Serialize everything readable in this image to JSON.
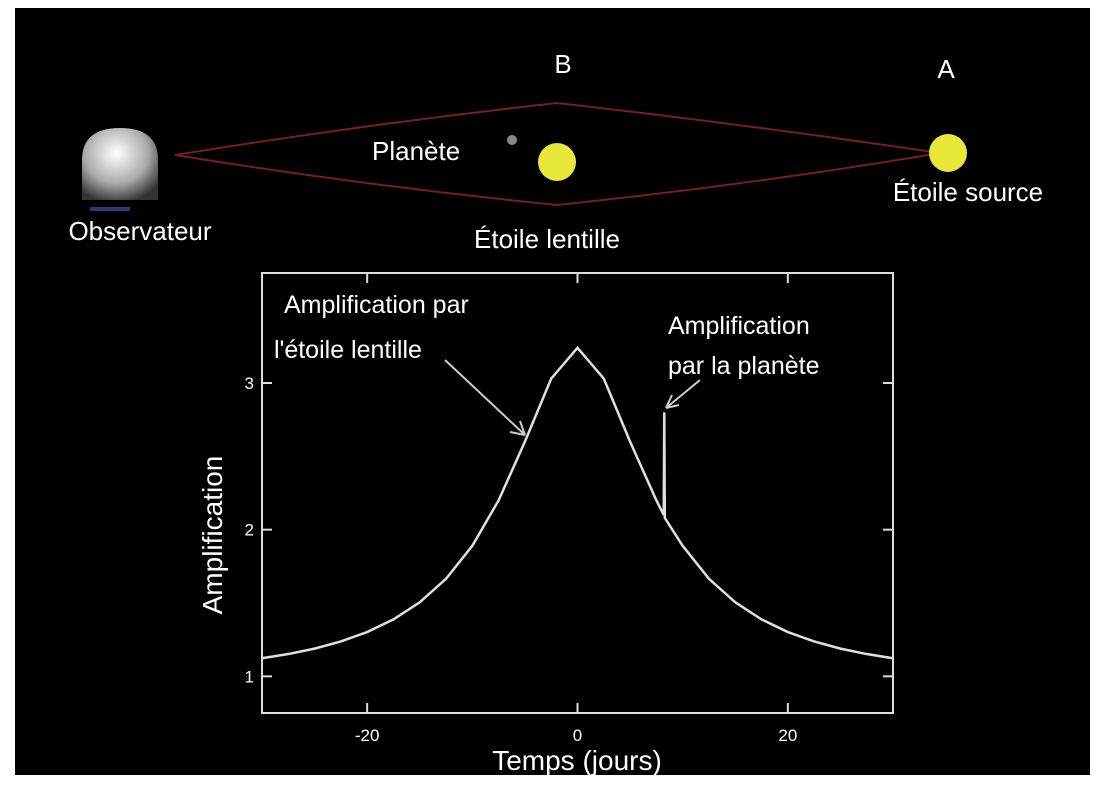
{
  "diagram": {
    "labels": {
      "b": "B",
      "a": "A",
      "planet": "Planète",
      "observer": "Observateur",
      "lens_star": "Étoile lentille",
      "source_star": "Étoile source"
    }
  },
  "chart_data": {
    "type": "line",
    "x_label": "Temps (jours)",
    "y_label": "Amplification",
    "annotations": {
      "lens": [
        "Amplification par",
        "l'étoile lentille"
      ],
      "planet": [
        "Amplification",
        "par la planète"
      ]
    },
    "x": [
      -30,
      -27.5,
      -25,
      -22.5,
      -20,
      -17.5,
      -15,
      -12.5,
      -10,
      -7.5,
      -5,
      -2.5,
      0,
      2.5,
      5,
      7.5,
      8.2,
      8.25,
      8.3,
      10,
      12.5,
      15,
      17.5,
      20,
      22.5,
      25,
      27.5,
      30
    ],
    "series": [
      {
        "color": "#e0e0e0",
        "values": [
          1.123,
          1.152,
          1.189,
          1.238,
          1.302,
          1.388,
          1.505,
          1.665,
          1.89,
          2.2,
          2.6,
          3.03,
          3.24,
          3.03,
          2.6,
          2.2,
          2.1,
          2.8,
          2.08,
          1.89,
          1.665,
          1.505,
          1.388,
          1.302,
          1.238,
          1.189,
          1.152,
          1.123
        ]
      }
    ],
    "xlim": [
      -30,
      30
    ],
    "xticks": [
      -20,
      0,
      20
    ],
    "ylim": [
      0.75,
      3.75
    ],
    "yticks": [
      1,
      2,
      3
    ]
  }
}
